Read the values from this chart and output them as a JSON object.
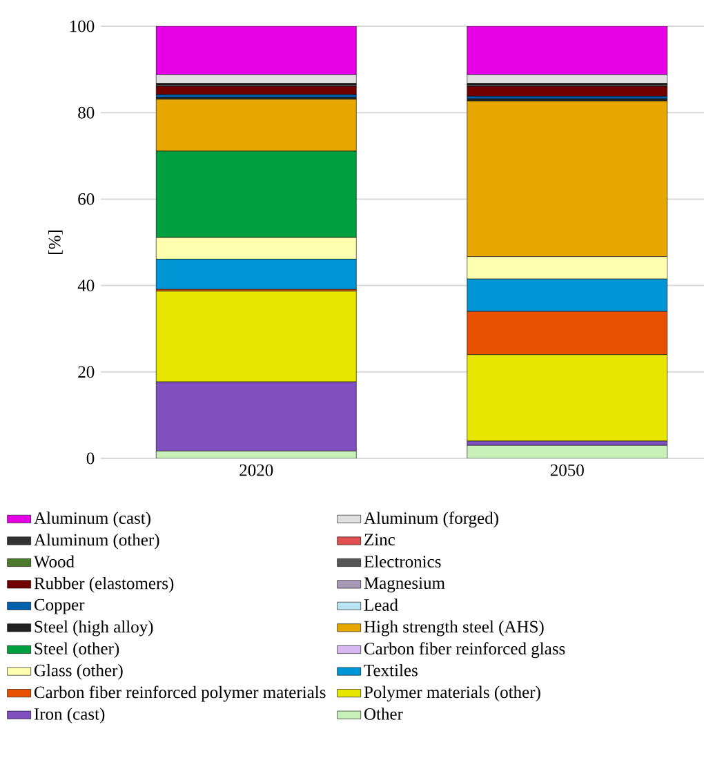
{
  "chart_data": {
    "type": "bar",
    "stacked": true,
    "categories": [
      "2020",
      "2050"
    ],
    "ylabel": "[%]",
    "ylim": [
      0,
      100
    ],
    "yticks": [
      0,
      20,
      40,
      60,
      80,
      100
    ],
    "grid": "y",
    "legend": "bottom",
    "series": [
      {
        "name": "Other",
        "color": "#c8f0b8",
        "values": [
          1.7,
          3
        ]
      },
      {
        "name": "Iron (cast)",
        "color": "#8050c0",
        "values": [
          16,
          1
        ]
      },
      {
        "name": "Polymer materials (other)",
        "color": "#e6e600",
        "values": [
          21,
          20
        ]
      },
      {
        "name": "Carbon fiber reinforced polymer materials",
        "color": "#e85000",
        "values": [
          0.4,
          10
        ]
      },
      {
        "name": "Textiles",
        "color": "#0096d6",
        "values": [
          7,
          7.5
        ]
      },
      {
        "name": "Glass (other)",
        "color": "#ffffb0",
        "values": [
          5,
          5.2
        ]
      },
      {
        "name": "Carbon fiber reinforced glass",
        "color": "#d8b8f0",
        "values": [
          0,
          0
        ]
      },
      {
        "name": "Steel (other)",
        "color": "#00a040",
        "values": [
          20,
          0
        ]
      },
      {
        "name": "High strength steel (AHS)",
        "color": "#e6a800",
        "values": [
          12,
          36
        ]
      },
      {
        "name": "Steel (high alloy)",
        "color": "#202020",
        "values": [
          0.4,
          0.5
        ]
      },
      {
        "name": "Lead",
        "color": "#b8e4f4",
        "values": [
          0,
          0
        ]
      },
      {
        "name": "Copper",
        "color": "#0060b0",
        "values": [
          0.7,
          0.6
        ]
      },
      {
        "name": "Magnesium",
        "color": "#a898b8",
        "values": [
          0,
          0
        ]
      },
      {
        "name": "Rubber (elastomers)",
        "color": "#700000",
        "values": [
          1.9,
          2.3
        ]
      },
      {
        "name": "Electronics",
        "color": "#555555",
        "values": [
          0.4,
          0.4
        ]
      },
      {
        "name": "Wood",
        "color": "#4a7a2a",
        "values": [
          0,
          0
        ]
      },
      {
        "name": "Zinc",
        "color": "#e05050",
        "values": [
          0,
          0
        ]
      },
      {
        "name": "Aluminum (other)",
        "color": "#333333",
        "values": [
          0.3,
          0.3
        ]
      },
      {
        "name": "Aluminum (forged)",
        "color": "#e0e0e0",
        "values": [
          2,
          2
        ]
      },
      {
        "name": "Aluminum (cast)",
        "color": "#e600e6",
        "values": [
          11.2,
          11.2
        ]
      }
    ]
  }
}
